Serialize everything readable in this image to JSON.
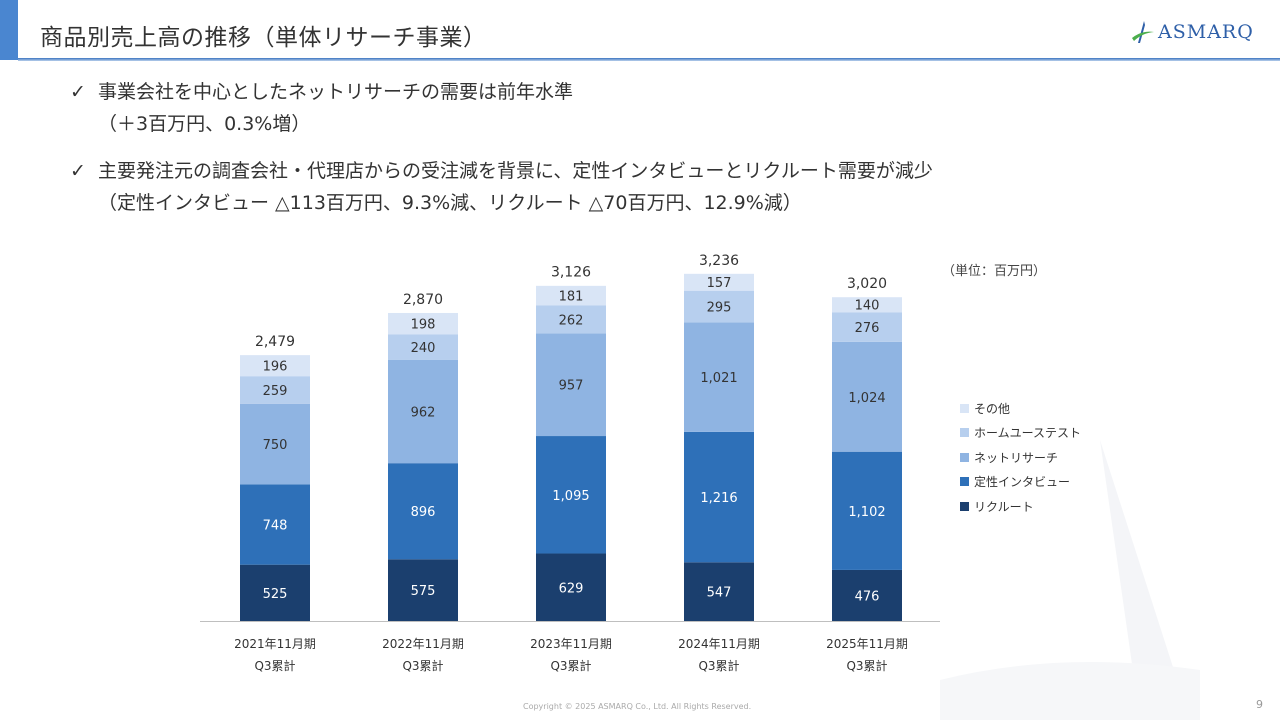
{
  "header": {
    "title": "商品別売上高の推移（単体リサーチ事業）",
    "logo_text": "ASMARQ"
  },
  "bullets": [
    {
      "icon": "check-icon",
      "mark": "✓",
      "line1": "事業会社を中心としたネットリサーチの需要は前年水準",
      "line2": "（＋3百万円、0.3%増）"
    },
    {
      "icon": "check-icon",
      "mark": "✓",
      "line1": "主要発注元の調査会社・代理店からの受注減を背景に、定性インタビューとリクルート需要が減少",
      "line2": "（定性インタビュー △113百万円、9.3%減、リクルート △70百万円、12.9%減）"
    }
  ],
  "chart_data": {
    "type": "bar",
    "stacked": true,
    "unit_label": "（単位：百万円）",
    "categories": [
      [
        "2021年11月期",
        "Q3累計"
      ],
      [
        "2022年11月期",
        "Q3累計"
      ],
      [
        "2023年11月期",
        "Q3累計"
      ],
      [
        "2024年11月期",
        "Q3累計"
      ],
      [
        "2025年11月期",
        "Q3累計"
      ]
    ],
    "series": [
      {
        "name": "リクルート",
        "color": "#1b3f6e",
        "label_color": "#ffffff",
        "values": [
          525,
          575,
          629,
          547,
          476
        ]
      },
      {
        "name": "定性インタビュー",
        "color": "#2e70b8",
        "label_color": "#ffffff",
        "values": [
          748,
          896,
          1095,
          1216,
          1102
        ]
      },
      {
        "name": "ネットリサーチ",
        "color": "#8fb4e2",
        "label_color": "#333333",
        "values": [
          750,
          962,
          957,
          1021,
          1024
        ]
      },
      {
        "name": "ホームユーステスト",
        "color": "#b7cfee",
        "label_color": "#333333",
        "values": [
          259,
          240,
          262,
          295,
          276
        ]
      },
      {
        "name": "その他",
        "color": "#d9e5f6",
        "label_color": "#333333",
        "values": [
          196,
          198,
          181,
          157,
          140
        ]
      }
    ],
    "value_labels": [
      [
        "525",
        "575",
        "629",
        "547",
        "476"
      ],
      [
        "748",
        "896",
        "1,095",
        "1,216",
        "1,102"
      ],
      [
        "750",
        "962",
        "957",
        "1,021",
        "1,024"
      ],
      [
        "259",
        "240",
        "262",
        "295",
        "276"
      ],
      [
        "196",
        "198",
        "181",
        "157",
        "140"
      ]
    ],
    "totals": [
      "2,479",
      "2,870",
      "3,126",
      "3,236",
      "3,020"
    ],
    "total_values": [
      2479,
      2870,
      3126,
      3236,
      3020
    ],
    "ylim": [
      0,
      3300
    ],
    "grid": false,
    "legend_position": "right",
    "legend_order": [
      "その他",
      "ホームユーステスト",
      "ネットリサーチ",
      "定性インタビュー",
      "リクルート"
    ]
  },
  "footer": {
    "copyright": "Copyright © 2025 ASMARQ Co., Ltd. All Rights Reserved.",
    "page_number": "9"
  }
}
